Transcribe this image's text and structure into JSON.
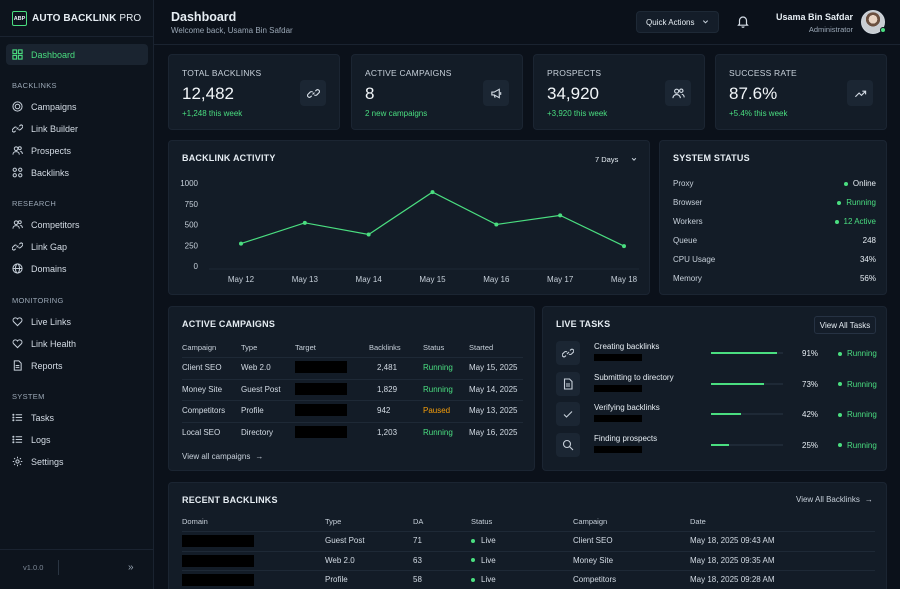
{
  "brand": {
    "logo": "ABP",
    "name_bold": "AUTO BACKLINK",
    "name_thin": " PRO"
  },
  "nav": {
    "active": "Dashboard",
    "sections": [
      {
        "title": "BACKLINKS",
        "items": [
          "Campaigns",
          "Link Builder",
          "Prospects",
          "Backlinks"
        ]
      },
      {
        "title": "RESEARCH",
        "items": [
          "Competitors",
          "Link Gap",
          "Domains"
        ]
      },
      {
        "title": "MONITORING",
        "items": [
          "Live Links",
          "Link Health",
          "Reports"
        ]
      },
      {
        "title": "SYSTEM",
        "items": [
          "Tasks",
          "Logs",
          "Settings"
        ]
      }
    ],
    "version": "v1.0.0",
    "collapse_glyph": "»"
  },
  "header": {
    "title": "Dashboard",
    "subtitle": "Welcome back, Usama Bin Safdar",
    "quick_actions": "Quick Actions",
    "user_name": "Usama Bin Safdar",
    "user_role": "Administrator"
  },
  "stats": [
    {
      "label": "TOTAL BACKLINKS",
      "value": "12,482",
      "delta": "+1,248 this week",
      "icon": "link-icon"
    },
    {
      "label": "ACTIVE CAMPAIGNS",
      "value": "8",
      "delta": "2 new campaigns",
      "icon": "megaphone-icon"
    },
    {
      "label": "PROSPECTS",
      "value": "34,920",
      "delta": "+3,920 this week",
      "icon": "users-icon"
    },
    {
      "label": "SUCCESS RATE",
      "value": "87.6%",
      "delta": "+5.4% this week",
      "icon": "trend-up-icon"
    }
  ],
  "activity": {
    "title": "BACKLINK ACTIVITY",
    "range": "7 Days"
  },
  "chart_data": {
    "type": "line",
    "title": "BACKLINK ACTIVITY",
    "xlabel": "",
    "ylabel": "",
    "categories": [
      "May 12",
      "May 13",
      "May 14",
      "May 15",
      "May 16",
      "May 17",
      "May 18"
    ],
    "values": [
      270,
      520,
      380,
      890,
      500,
      610,
      240
    ],
    "yticks": [
      "1000",
      "750",
      "500",
      "250",
      "0"
    ],
    "ylim": [
      0,
      1000
    ],
    "grid": false,
    "color": "#4ade80"
  },
  "system": {
    "title": "SYSTEM STATUS",
    "rows": [
      {
        "label": "Proxy",
        "value": "Online",
        "dot": true,
        "green": false
      },
      {
        "label": "Browser",
        "value": "Running",
        "dot": true,
        "green": true
      },
      {
        "label": "Workers",
        "value": "12 Active",
        "dot": true,
        "green": true
      },
      {
        "label": "Queue",
        "value": "248",
        "dot": false,
        "green": false
      },
      {
        "label": "CPU Usage",
        "value": "34%",
        "dot": false,
        "green": false
      },
      {
        "label": "Memory",
        "value": "56%",
        "dot": false,
        "green": false
      }
    ]
  },
  "campaigns": {
    "title": "ACTIVE CAMPAIGNS",
    "headers": [
      "Campaign",
      "Type",
      "Target",
      "Backlinks",
      "Status",
      "Started"
    ],
    "rows": [
      {
        "name": "Client SEO",
        "type": "Web 2.0",
        "backlinks": "2,481",
        "status": "Running",
        "started": "May 15, 2025"
      },
      {
        "name": "Money Site",
        "type": "Guest Post",
        "backlinks": "1,829",
        "status": "Running",
        "started": "May 14, 2025"
      },
      {
        "name": "Competitors",
        "type": "Profile",
        "backlinks": "942",
        "status": "Paused",
        "started": "May 13, 2025"
      },
      {
        "name": "Local SEO",
        "type": "Directory",
        "backlinks": "1,203",
        "status": "Running",
        "started": "May 16, 2025"
      }
    ],
    "view_all": "View all campaigns",
    "arrow": "→"
  },
  "tasks": {
    "title": "LIVE TASKS",
    "view_all": "View All Tasks",
    "rows": [
      {
        "title": "Creating backlinks",
        "progress": 0.91,
        "pct": "91%",
        "status": "Running",
        "icon": "link-icon"
      },
      {
        "title": "Submitting to directory",
        "progress": 0.73,
        "pct": "73%",
        "status": "Running",
        "icon": "document-icon"
      },
      {
        "title": "Verifying backlinks",
        "progress": 0.42,
        "pct": "42%",
        "status": "Running",
        "icon": "check-icon"
      },
      {
        "title": "Finding prospects",
        "progress": 0.25,
        "pct": "25%",
        "status": "Running",
        "icon": "search-icon"
      }
    ]
  },
  "recent": {
    "title": "RECENT BACKLINKS",
    "view_all": "View All Backlinks",
    "arrow": "→",
    "headers": [
      "Domain",
      "Type",
      "DA",
      "Status",
      "Campaign",
      "Date"
    ],
    "rows": [
      {
        "type": "Guest Post",
        "da": "71",
        "status": "Live",
        "campaign": "Client SEO",
        "date": "May 18, 2025 09:43 AM"
      },
      {
        "type": "Web 2.0",
        "da": "63",
        "status": "Live",
        "campaign": "Money Site",
        "date": "May 18, 2025 09:35 AM"
      },
      {
        "type": "Profile",
        "da": "58",
        "status": "Live",
        "campaign": "Competitors",
        "date": "May 18, 2025 09:28 AM"
      }
    ]
  }
}
